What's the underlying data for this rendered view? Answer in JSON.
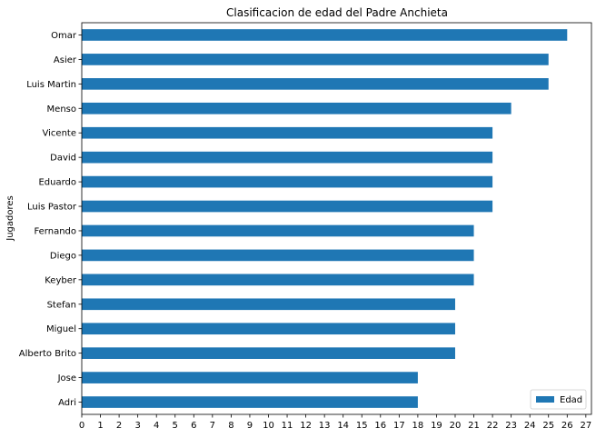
{
  "chart_data": {
    "type": "bar",
    "orientation": "horizontal",
    "title": "Clasificacion de edad del Padre Anchieta",
    "xlabel": "",
    "ylabel": "Jugadores",
    "categories": [
      "Omar",
      "Asier",
      "Luis Martin",
      "Menso",
      "Vicente",
      "David",
      "Eduardo",
      "Luis Pastor",
      "Fernando",
      "Diego",
      "Keyber",
      "Stefan",
      "Miguel",
      "Alberto Brito",
      "Jose",
      "Adri"
    ],
    "series": [
      {
        "name": "Edad",
        "values": [
          26,
          25,
          25,
          23,
          22,
          22,
          22,
          22,
          21,
          21,
          21,
          20,
          20,
          20,
          18,
          18
        ],
        "color": "#1f77b4"
      }
    ],
    "xlim": [
      0,
      27.3
    ],
    "xticks": [
      0,
      1,
      2,
      3,
      4,
      5,
      6,
      7,
      8,
      9,
      10,
      11,
      12,
      13,
      14,
      15,
      16,
      17,
      18,
      19,
      20,
      21,
      22,
      23,
      24,
      25,
      26,
      27
    ],
    "grid": false,
    "legend_position": "bottom-right"
  }
}
